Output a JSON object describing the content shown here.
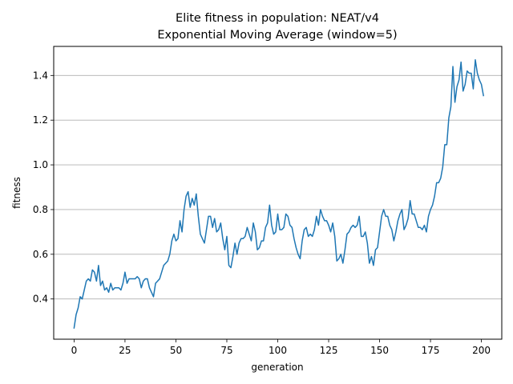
{
  "chart_data": {
    "type": "line",
    "title": "Elite fitness in population: NEAT/v4",
    "subtitle": "Exponential Moving Average (window=5)",
    "xlabel": "generation",
    "ylabel": "fitness",
    "xlim": [
      -10,
      210
    ],
    "ylim": [
      0.22,
      1.53
    ],
    "xticks": [
      0,
      25,
      50,
      75,
      100,
      125,
      150,
      175,
      200
    ],
    "yticks": [
      0.4,
      0.6,
      0.8,
      1.0,
      1.2,
      1.4
    ],
    "ytick_labels": [
      "0.4",
      "0.6",
      "0.8",
      "1.0",
      "1.2",
      "1.4"
    ],
    "grid": "horizontal",
    "line_color": "#1f77b4",
    "series": [
      {
        "values": [
          0.27,
          0.33,
          0.36,
          0.41,
          0.4,
          0.44,
          0.48,
          0.49,
          0.48,
          0.53,
          0.52,
          0.48,
          0.55,
          0.46,
          0.48,
          0.44,
          0.45,
          0.43,
          0.47,
          0.44,
          0.45,
          0.45,
          0.45,
          0.44,
          0.47,
          0.52,
          0.47,
          0.49,
          0.49,
          0.49,
          0.49,
          0.5,
          0.49,
          0.45,
          0.48,
          0.49,
          0.49,
          0.45,
          0.43,
          0.41,
          0.47,
          0.48,
          0.49,
          0.52,
          0.55,
          0.56,
          0.57,
          0.6,
          0.66,
          0.69,
          0.66,
          0.67,
          0.75,
          0.7,
          0.8,
          0.86,
          0.88,
          0.81,
          0.85,
          0.82,
          0.87,
          0.77,
          0.69,
          0.67,
          0.65,
          0.71,
          0.77,
          0.77,
          0.72,
          0.76,
          0.7,
          0.71,
          0.74,
          0.67,
          0.62,
          0.68,
          0.55,
          0.54,
          0.59,
          0.65,
          0.6,
          0.65,
          0.67,
          0.67,
          0.68,
          0.72,
          0.69,
          0.66,
          0.74,
          0.7,
          0.62,
          0.63,
          0.66,
          0.66,
          0.72,
          0.74,
          0.82,
          0.73,
          0.69,
          0.7,
          0.78,
          0.71,
          0.71,
          0.72,
          0.78,
          0.77,
          0.73,
          0.72,
          0.67,
          0.63,
          0.6,
          0.58,
          0.66,
          0.71,
          0.72,
          0.68,
          0.69,
          0.68,
          0.71,
          0.77,
          0.73,
          0.8,
          0.77,
          0.75,
          0.75,
          0.73,
          0.7,
          0.74,
          0.68,
          0.57,
          0.58,
          0.6,
          0.56,
          0.62,
          0.69,
          0.7,
          0.72,
          0.73,
          0.72,
          0.73,
          0.77,
          0.68,
          0.68,
          0.7,
          0.65,
          0.56,
          0.59,
          0.55,
          0.62,
          0.63,
          0.7,
          0.77,
          0.8,
          0.77,
          0.77,
          0.73,
          0.71,
          0.66,
          0.7,
          0.75,
          0.78,
          0.8,
          0.71,
          0.73,
          0.76,
          0.84,
          0.78,
          0.78,
          0.75,
          0.72,
          0.72,
          0.71,
          0.73,
          0.7,
          0.77,
          0.8,
          0.82,
          0.86,
          0.92,
          0.92,
          0.94,
          0.99,
          1.09,
          1.09,
          1.21,
          1.26,
          1.44,
          1.28,
          1.35,
          1.38,
          1.46,
          1.33,
          1.36,
          1.42,
          1.41,
          1.41,
          1.34,
          1.47,
          1.41,
          1.38,
          1.36,
          1.31
        ]
      }
    ]
  }
}
